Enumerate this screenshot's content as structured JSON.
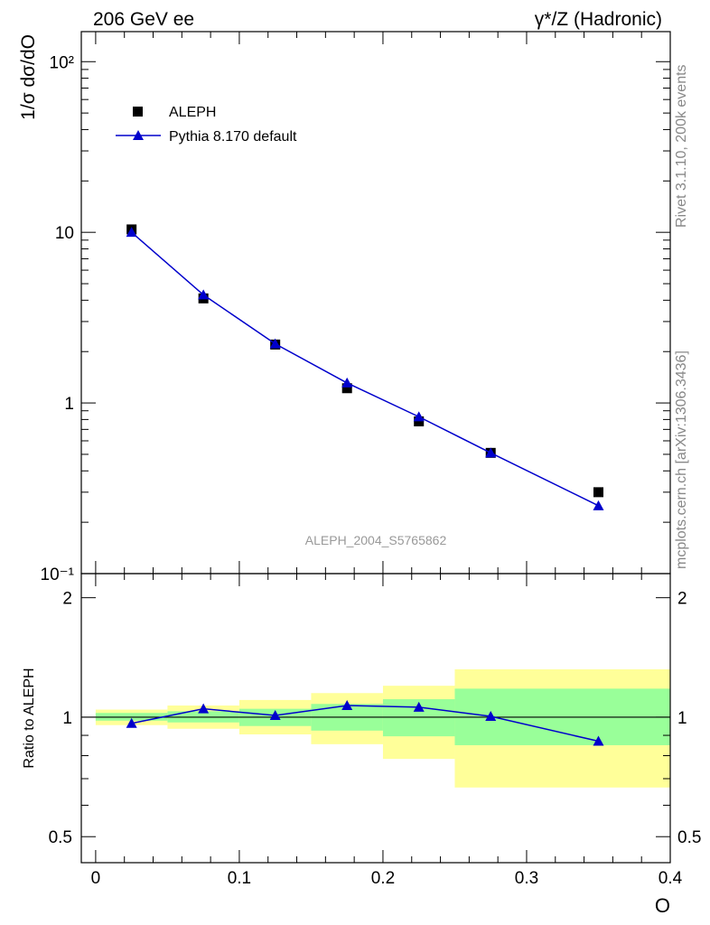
{
  "header": {
    "left": "206 GeV ee",
    "right": "γ*/Z (Hadronic)"
  },
  "watermark": {
    "top": "Rivet 3.1.10,  200k events",
    "bottom": "mcplots.cern.ch [arXiv:1306.3436]"
  },
  "chart_data": [
    {
      "type": "scatter",
      "ylabel": "1/σ  dσ/dO",
      "yscale": "log",
      "ylim": [
        0.1,
        150
      ],
      "xlim": [
        -0.01,
        0.4
      ],
      "analysis_label": "ALEPH_2004_S5765862",
      "yticks": [
        {
          "value": 0.1,
          "label": "10⁻¹"
        },
        {
          "value": 1,
          "label": "1"
        },
        {
          "value": 10,
          "label": "10"
        },
        {
          "value": 100,
          "label": "10²"
        }
      ],
      "series": [
        {
          "name": "ALEPH",
          "marker": "square",
          "color": "#000000",
          "x": [
            0.025,
            0.075,
            0.125,
            0.175,
            0.225,
            0.275,
            0.35
          ],
          "y": [
            10.4,
            4.1,
            2.2,
            1.22,
            0.78,
            0.51,
            0.3
          ]
        },
        {
          "name": "Pythia 8.170 default",
          "marker": "triangle",
          "color": "#0000cc",
          "x": [
            0.025,
            0.075,
            0.125,
            0.175,
            0.225,
            0.275,
            0.35
          ],
          "y": [
            10.0,
            4.3,
            2.22,
            1.31,
            0.83,
            0.51,
            0.25
          ]
        }
      ]
    },
    {
      "type": "line",
      "ylabel": "Ratio to ALEPH",
      "yscale": "log",
      "ylim": [
        0.43,
        2.3
      ],
      "xlim": [
        -0.01,
        0.4
      ],
      "xlabel": "O",
      "xticks": [
        {
          "value": 0,
          "label": "0"
        },
        {
          "value": 0.1,
          "label": "0.1"
        },
        {
          "value": 0.2,
          "label": "0.2"
        },
        {
          "value": 0.3,
          "label": "0.3"
        },
        {
          "value": 0.4,
          "label": "0.4"
        }
      ],
      "yticks": [
        {
          "value": 0.5,
          "label": "0.5"
        },
        {
          "value": 1,
          "label": "1"
        },
        {
          "value": 2,
          "label": "2"
        }
      ],
      "bands": [
        {
          "x0": 0.0,
          "x1": 0.05,
          "inner": [
            0.98,
            1.025
          ],
          "outer": [
            0.955,
            1.045
          ]
        },
        {
          "x0": 0.05,
          "x1": 0.1,
          "inner": [
            0.97,
            1.035
          ],
          "outer": [
            0.935,
            1.07
          ]
        },
        {
          "x0": 0.1,
          "x1": 0.15,
          "inner": [
            0.95,
            1.05
          ],
          "outer": [
            0.905,
            1.105
          ]
        },
        {
          "x0": 0.15,
          "x1": 0.2,
          "inner": [
            0.925,
            1.08
          ],
          "outer": [
            0.855,
            1.15
          ]
        },
        {
          "x0": 0.2,
          "x1": 0.25,
          "inner": [
            0.895,
            1.11
          ],
          "outer": [
            0.785,
            1.2
          ]
        },
        {
          "x0": 0.25,
          "x1": 0.4,
          "inner": [
            0.85,
            1.18
          ],
          "outer": [
            0.665,
            1.32
          ]
        }
      ],
      "series": [
        {
          "name": "Pythia 8.170 default",
          "marker": "triangle",
          "color": "#0000cc",
          "x": [
            0.025,
            0.075,
            0.125,
            0.175,
            0.225,
            0.275,
            0.35
          ],
          "y": [
            0.965,
            1.05,
            1.01,
            1.07,
            1.06,
            1.005,
            0.87
          ]
        }
      ]
    }
  ],
  "colors": {
    "band_inner": "#99ff99",
    "band_outer": "#ffff99",
    "mc": "#0000cc",
    "data": "#000000",
    "watermark": "#888888"
  }
}
